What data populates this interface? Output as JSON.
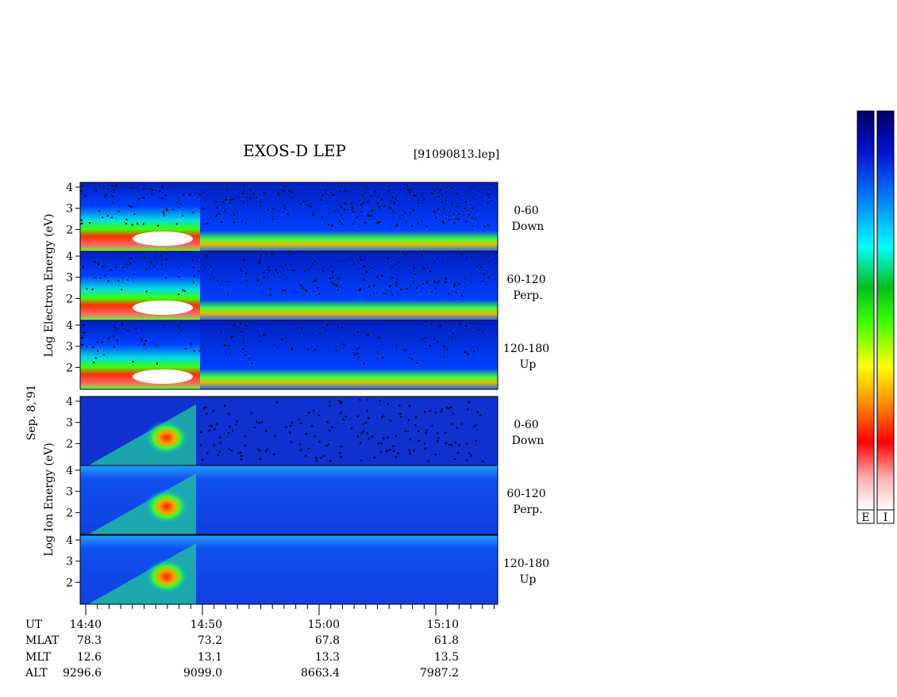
{
  "title": "EXOS-D LEP",
  "file": "[91090813.lep]",
  "electron_axis_label": "Log Electron Energy (eV)",
  "date": "Sep. 8,'91",
  "ion_axis_label": "Log Ion Energy (eV)",
  "panels": [
    {
      "angle": "0-60",
      "direction": "Down",
      "yticks": [
        4,
        3,
        2
      ]
    },
    {
      "angle": "60-120",
      "direction": "Perp.",
      "yticks": [
        4,
        3,
        2
      ]
    },
    {
      "angle": "120-180",
      "direction": "Up",
      "yticks": [
        4,
        3,
        2
      ]
    },
    {
      "angle": "0-60",
      "direction": "Down",
      "yticks": [
        4,
        3,
        2
      ]
    },
    {
      "angle": "60-120",
      "direction": "Perp.",
      "yticks": [
        4,
        3,
        2
      ]
    },
    {
      "angle": "120-180",
      "direction": "Up",
      "yticks": [
        4,
        3,
        2
      ]
    }
  ],
  "orbit_table": [
    {
      "label": "UT",
      "values": [
        "14:40",
        "14:50",
        "15:00",
        "15:10"
      ]
    },
    {
      "label": "MLAT",
      "values": [
        "78.3",
        "73.2",
        "67.8",
        "61.8"
      ]
    },
    {
      "label": "MLT",
      "values": [
        "12.6",
        "13.1",
        "13.3",
        "13.5"
      ]
    },
    {
      "label": "ALT",
      "values": [
        "9296.6",
        "9099.0",
        "8663.4",
        "7987.2"
      ]
    }
  ],
  "colorbar_labels": [
    "E",
    "I"
  ]
}
